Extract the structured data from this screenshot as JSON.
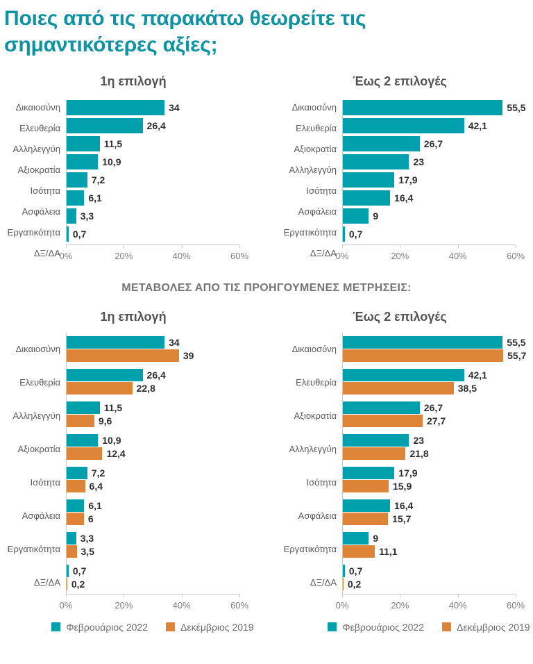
{
  "page": {
    "title_lines": [
      "Ποιες από τις παρακάτω θεωρείτε τις",
      "σημαντικότερες αξίες;"
    ],
    "section2_header": "ΜΕΤΑΒΟΛΕΣ ΑΠΟ ΤΙΣ ΠΡΟΗΓΟΥΜΕΝΕΣ ΜΕΤΡΗΣΕΙΣ:"
  },
  "colors": {
    "teal": "#00A1AC",
    "orange": "#DD8438",
    "title_teal": "#0F93A2",
    "axis_gray": "#C8C9CB"
  },
  "chart_data": [
    {
      "type": "bar",
      "orientation": "horizontal",
      "title": "1η επιλογή",
      "xlim": [
        0,
        60
      ],
      "xticks": [
        "0%",
        "20%",
        "40%",
        "60%"
      ],
      "categories": [
        "Δικαιοσύνη",
        "Ελευθερία",
        "Αλληλεγγύη",
        "Αξιοκρατία",
        "Ισότητα",
        "Ασφάλεια",
        "Εργατικότητα",
        "ΔΞ/ΔΑ"
      ],
      "values": [
        34,
        26.4,
        11.5,
        10.9,
        7.2,
        6.1,
        3.3,
        0.7
      ],
      "legend": false
    },
    {
      "type": "bar",
      "orientation": "horizontal",
      "title": "Έως 2 επιλογές",
      "xlim": [
        0,
        60
      ],
      "xticks": [
        "0%",
        "20%",
        "40%",
        "60%"
      ],
      "categories": [
        "Δικαιοσύνη",
        "Ελευθερία",
        "Αξιοκρατία",
        "Αλληλεγγύη",
        "Ισότητα",
        "Ασφάλεια",
        "Εργατικότητα",
        "ΔΞ/ΔΑ"
      ],
      "values": [
        55.5,
        42.1,
        26.7,
        23,
        17.9,
        16.4,
        9,
        0.7
      ],
      "legend": false
    },
    {
      "type": "bar",
      "orientation": "horizontal",
      "title": "1η επιλογή",
      "xlim": [
        0,
        60
      ],
      "xticks": [
        "0%",
        "20%",
        "40%",
        "60%"
      ],
      "categories": [
        "Δικαιοσύνη",
        "Ελευθερία",
        "Αλληλεγγύη",
        "Αξιοκρατία",
        "Ισότητα",
        "Ασφάλεια",
        "Εργατικότητα",
        "ΔΞ/ΔΑ"
      ],
      "series": [
        {
          "name": "Φεβρουάριος 2022",
          "color_key": "teal",
          "values": [
            34,
            26.4,
            11.5,
            10.9,
            7.2,
            6.1,
            3.3,
            0.7
          ]
        },
        {
          "name": "Δεκέμβριος 2019",
          "color_key": "orange",
          "values": [
            39,
            22.8,
            9.6,
            12.4,
            6.4,
            6,
            3.5,
            0.2
          ]
        }
      ],
      "legend": true
    },
    {
      "type": "bar",
      "orientation": "horizontal",
      "title": "Έως 2 επιλογές",
      "xlim": [
        0,
        60
      ],
      "xticks": [
        "0%",
        "20%",
        "40%",
        "60%"
      ],
      "categories": [
        "Δικαιοσύνη",
        "Ελευθερία",
        "Αξιοκρατία",
        "Αλληλεγγύη",
        "Ισότητα",
        "Ασφάλεια",
        "Εργατικότητα",
        "ΔΞ/ΔΑ"
      ],
      "series": [
        {
          "name": "Φεβρουάριος 2022",
          "color_key": "teal",
          "values": [
            55.5,
            42.1,
            26.7,
            23,
            17.9,
            16.4,
            9,
            0.7
          ]
        },
        {
          "name": "Δεκέμβριος 2019",
          "color_key": "orange",
          "values": [
            55.7,
            38.5,
            27.7,
            21.8,
            15.9,
            15.7,
            11.1,
            0.2
          ]
        }
      ],
      "legend": true
    }
  ]
}
